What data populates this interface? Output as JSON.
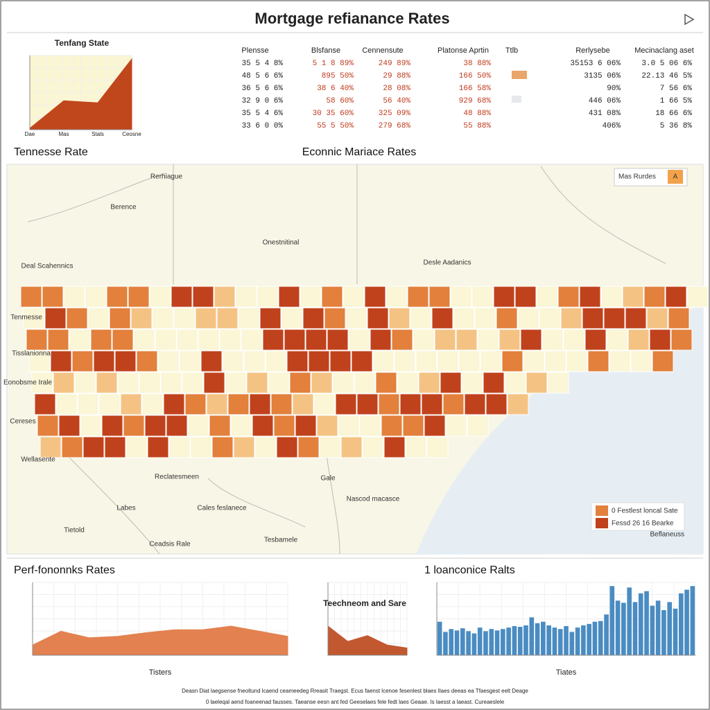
{
  "title": "Mortgage refianance Rates",
  "sections": {
    "left": "Tennesse Rate",
    "map": "Econnic Mariace Rates"
  },
  "table": {
    "header": [
      "Plensse",
      "Blsfanse",
      "Cennensute",
      "Platonse Aprtin",
      "Ttlb",
      "Rerlysebe",
      "Mecinaclang aset"
    ],
    "rows": [
      [
        "35 5 4 8%",
        "5 1 8 89%",
        "249 89%",
        "38 88%",
        "35153 6 06%",
        "3.0 5 06 6%"
      ],
      [
        "48 5 6 6%",
        "895 50%",
        "29 88%",
        "166 50%",
        "3135 06%",
        "22.13 46 5%"
      ],
      [
        "36 5 6 6%",
        "38 6 40%",
        "28 08%",
        "166 58%",
        "90%",
        "7 56 6%"
      ],
      [
        "32 9 0 6%",
        "58 60%",
        "56 40%",
        "929 68%",
        "446 06%",
        "1 66 5%"
      ],
      [
        "35 5 4 6%",
        "30 35 60%",
        "325 09%",
        "48 88%",
        "431 08%",
        "18 66 6%"
      ],
      [
        "33 6 0 0%",
        "55 5 50%",
        "279 68%",
        "55 88%",
        "406%",
        "5 36 8%"
      ]
    ]
  },
  "map": {
    "labels": [
      "Rerhiague",
      "Berence",
      "Onestnitinal",
      "Deal Scahennics",
      "Desle Aadanics",
      "Tenmesse",
      "Tisslanionna",
      "Eonobsme Irale",
      "Cereses",
      "Wellasente",
      "Reclatesmeen",
      "Gale",
      "Nascod macasce",
      "Labes",
      "Cales feslanece",
      "Tietold",
      "Ceadsis Rale",
      "Tesbamele"
    ],
    "legend_top": [
      "Mas Rurdes",
      "A"
    ],
    "legend_bottom": [
      "0 Festlest loncal Sate",
      "Fessd 26 16 Bearke",
      "Beflaneuss"
    ]
  },
  "footer": [
    "Deasn Diat laegsense fneoltund lcaend ceameedeg Rreasit Traegst. Ecus faenst lcenoe fesenlest blaes Ilaes deeas ea Tfaesgest eelt Deage",
    "0 laeleqal aend foaneenad fausses. Taeanse eesn ant fed Geeselaes fele fedt laes Geaae. Is laesst a laeast. Cureaeslele"
  ],
  "chart_data": [
    {
      "type": "area",
      "title": "Tenfang State",
      "categories": [
        "Dae",
        "Mas",
        "Stals",
        "Ceosne"
      ],
      "values": [
        2,
        41,
        38,
        100
      ],
      "ylim": [
        0,
        105
      ],
      "color": "#c0461c",
      "background": "#fbf6d2"
    },
    {
      "type": "area",
      "title": "Perf-fononnks Rates",
      "x_label": "Tisters",
      "values": [
        14,
        33,
        24,
        26,
        31,
        35,
        35,
        40,
        33,
        26
      ],
      "ylim": [
        0,
        100
      ],
      "color": "#e38150"
    },
    {
      "type": "area",
      "title": "Teechneom and Sare",
      "values": [
        40,
        19,
        27,
        14,
        10
      ],
      "ylim": [
        0,
        100
      ],
      "color": "#c2582f"
    },
    {
      "type": "bar",
      "title": "1 loanconice Ralts",
      "x_label": "Tiates",
      "values": [
        46,
        32,
        36,
        34,
        37,
        33,
        30,
        38,
        33,
        36,
        34,
        36,
        38,
        40,
        39,
        41,
        52,
        44,
        46,
        41,
        38,
        36,
        40,
        32,
        38,
        41,
        43,
        46,
        47,
        56,
        95,
        75,
        72,
        93,
        73,
        85,
        88,
        68,
        75,
        62,
        73,
        64,
        85,
        90,
        95
      ],
      "ylim": [
        0,
        100
      ],
      "color": "#4a8cc2"
    }
  ]
}
